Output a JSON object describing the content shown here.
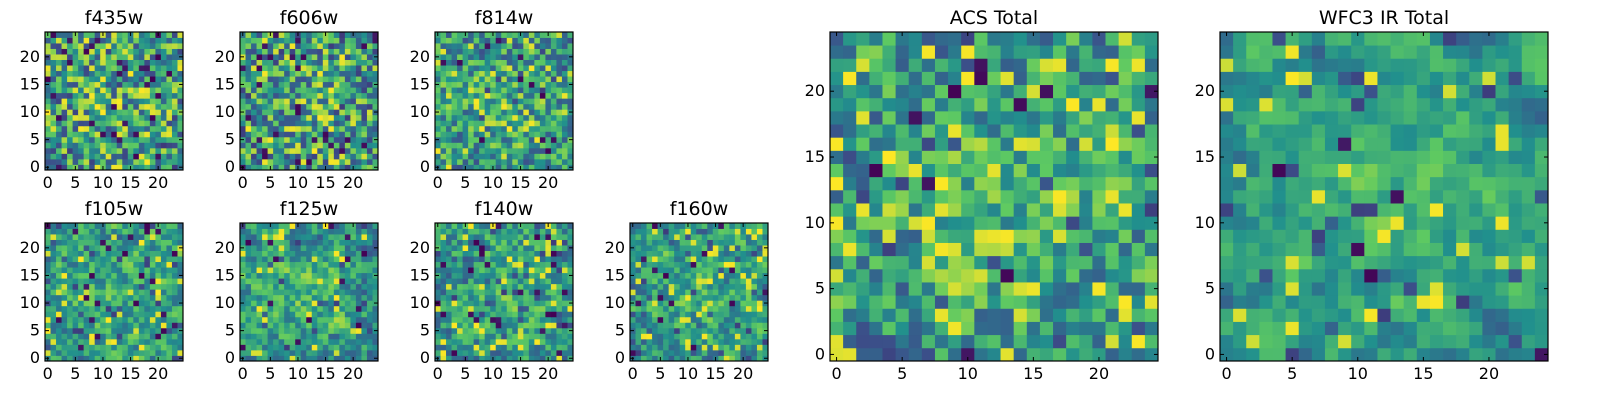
{
  "figure": {
    "grid_size": 25,
    "colormap": [
      "#440154",
      "#3b528b",
      "#21908d",
      "#5dc962",
      "#fde725"
    ]
  },
  "chart_data": [
    {
      "id": "f435w",
      "type": "heatmap",
      "title": "f435w",
      "size": "small",
      "x_ticks": [
        "0",
        "5",
        "10",
        "15",
        "20"
      ],
      "y_ticks": [
        "0",
        "5",
        "10",
        "15",
        "20"
      ],
      "xlim": [
        0,
        25
      ],
      "ylim": [
        0,
        25
      ],
      "seed": 11,
      "smooth": 0,
      "dark": 0.05,
      "bright": 0.3
    },
    {
      "id": "f606w",
      "type": "heatmap",
      "title": "f606w",
      "size": "small",
      "x_ticks": [
        "0",
        "5",
        "10",
        "15",
        "20"
      ],
      "y_ticks": [
        "0",
        "5",
        "10",
        "15",
        "20"
      ],
      "xlim": [
        0,
        25
      ],
      "ylim": [
        0,
        25
      ],
      "seed": 23,
      "smooth": 0,
      "dark": 0.04,
      "bright": 0.28
    },
    {
      "id": "f814w",
      "type": "heatmap",
      "title": "f814w",
      "size": "small",
      "x_ticks": [
        "0",
        "5",
        "10",
        "15",
        "20"
      ],
      "y_ticks": [
        "0",
        "5",
        "10",
        "15",
        "20"
      ],
      "xlim": [
        0,
        25
      ],
      "ylim": [
        0,
        25
      ],
      "seed": 37,
      "smooth": 0.25,
      "dark": 0.02,
      "bright": 0.22
    },
    {
      "id": "f105w",
      "type": "heatmap",
      "title": "f105w",
      "size": "small",
      "x_ticks": [
        "0",
        "5",
        "10",
        "15",
        "20"
      ],
      "y_ticks": [
        "0",
        "5",
        "10",
        "15",
        "20"
      ],
      "xlim": [
        0,
        25
      ],
      "ylim": [
        0,
        25
      ],
      "seed": 41,
      "smooth": 0.5,
      "dark": 0.03,
      "bright": 0.25
    },
    {
      "id": "f125w",
      "type": "heatmap",
      "title": "f125w",
      "size": "small",
      "x_ticks": [
        "0",
        "5",
        "10",
        "15",
        "20"
      ],
      "y_ticks": [
        "0",
        "5",
        "10",
        "15",
        "20"
      ],
      "xlim": [
        0,
        25
      ],
      "ylim": [
        0,
        25
      ],
      "seed": 53,
      "smooth": 0.5,
      "dark": 0.03,
      "bright": 0.25
    },
    {
      "id": "f140w",
      "type": "heatmap",
      "title": "f140w",
      "size": "small",
      "x_ticks": [
        "0",
        "5",
        "10",
        "15",
        "20"
      ],
      "y_ticks": [
        "0",
        "5",
        "10",
        "15",
        "20"
      ],
      "xlim": [
        0,
        25
      ],
      "ylim": [
        0,
        25
      ],
      "seed": 67,
      "smooth": 0.5,
      "dark": 0.03,
      "bright": 0.28
    },
    {
      "id": "f160w",
      "type": "heatmap",
      "title": "f160w",
      "size": "small",
      "x_ticks": [
        "0",
        "5",
        "10",
        "15",
        "20"
      ],
      "y_ticks": [
        "0",
        "5",
        "10",
        "15",
        "20"
      ],
      "xlim": [
        0,
        25
      ],
      "ylim": [
        0,
        25
      ],
      "seed": 79,
      "smooth": 0.5,
      "dark": 0.03,
      "bright": 0.25
    },
    {
      "id": "acs_total",
      "type": "heatmap",
      "title": "ACS Total",
      "size": "large",
      "x_ticks": [
        "0",
        "5",
        "10",
        "15",
        "20"
      ],
      "y_ticks": [
        "0",
        "5",
        "10",
        "15",
        "20"
      ],
      "xlim": [
        0,
        25
      ],
      "ylim": [
        0,
        25
      ],
      "seed": 97,
      "smooth": 0.35,
      "dark": 0.02,
      "bright": 0.4
    },
    {
      "id": "wfc3_ir_total",
      "type": "heatmap",
      "title": "WFC3 IR Total",
      "size": "large",
      "x_ticks": [
        "0",
        "5",
        "10",
        "15",
        "20"
      ],
      "y_ticks": [
        "0",
        "5",
        "10",
        "15",
        "20"
      ],
      "xlim": [
        0,
        25
      ],
      "ylim": [
        0,
        25
      ],
      "seed": 113,
      "smooth": 0.7,
      "dark": 0.015,
      "bright": 0.2
    }
  ]
}
